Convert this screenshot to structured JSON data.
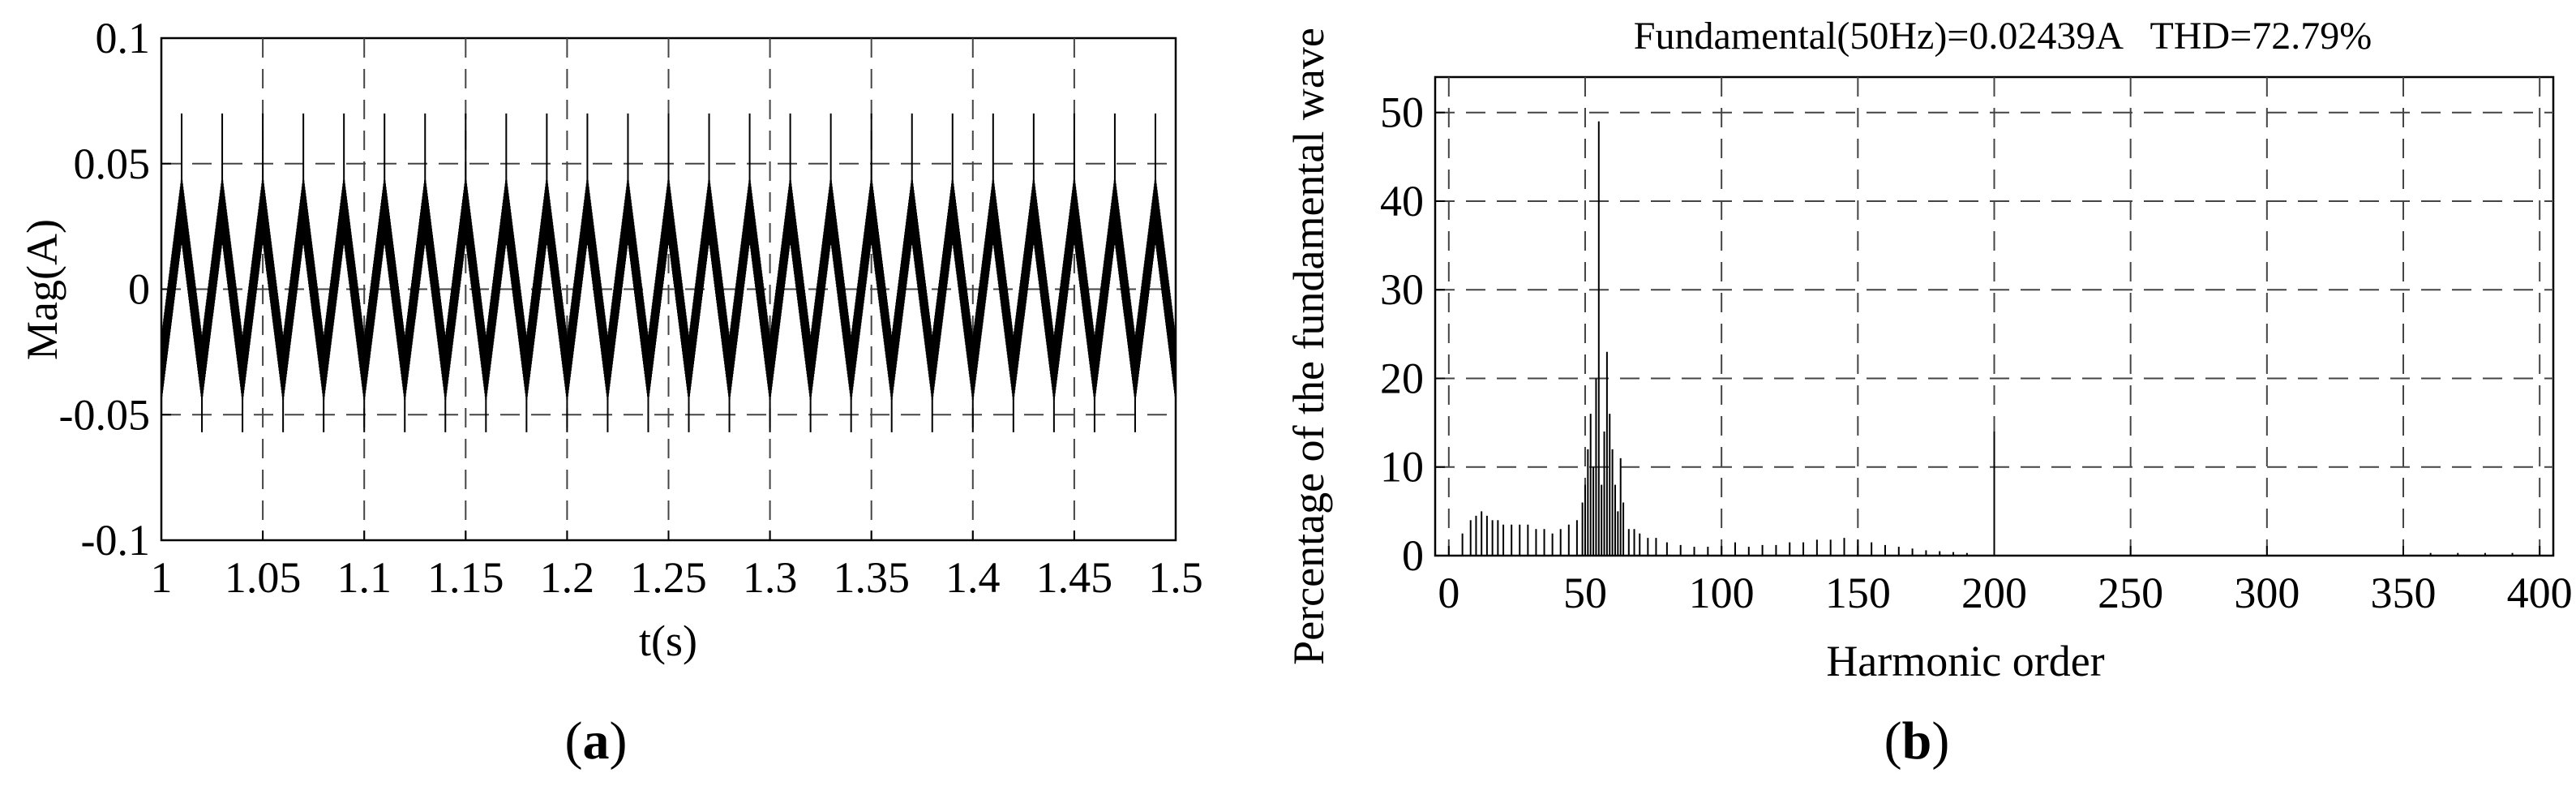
{
  "chart_data": [
    {
      "type": "line",
      "panel_label": {
        "open": "(",
        "letter": "a",
        "close": ")"
      },
      "title": "",
      "xlabel": "t(s)",
      "ylabel": "Mag(A)",
      "xlim": [
        1,
        1.5
      ],
      "ylim": [
        -0.1,
        0.1
      ],
      "xticks": [
        1,
        1.05,
        1.1,
        1.15,
        1.2,
        1.25,
        1.3,
        1.35,
        1.4,
        1.45,
        1.5
      ],
      "xtick_labels": [
        "1",
        "1.05",
        "1.1",
        "1.15",
        "1.2",
        "1.25",
        "1.3",
        "1.35",
        "1.4",
        "1.45",
        "1.5"
      ],
      "yticks": [
        -0.1,
        -0.05,
        0,
        0.05,
        0.1
      ],
      "ytick_labels": [
        "-0.1",
        "-0.05",
        "0",
        "0.05",
        "0.1"
      ],
      "grid": true,
      "series": [
        {
          "color": "#000000",
          "frequency_hz": 50,
          "envelope_max": 0.04,
          "envelope_min": -0.04,
          "spike_max": 0.07,
          "spike_min": -0.057,
          "x": [
            1.0,
            1.005,
            1.01,
            1.015,
            1.02,
            1.025,
            1.03,
            1.035,
            1.04,
            1.045,
            1.05
          ],
          "y": [
            -0.02,
            0.01,
            0.035,
            0.0,
            -0.035,
            0.01,
            0.035,
            0.0,
            -0.035,
            0.01,
            0.035
          ]
        }
      ]
    },
    {
      "type": "bar",
      "panel_label": {
        "open": "(",
        "letter": "b",
        "close": ")"
      },
      "title": "Fundamental(50Hz)=0.02439A   THD=72.79%",
      "xlabel": "Harmonic order",
      "ylabel": "Percentage of the fundamental wave",
      "xlim": [
        -5,
        405
      ],
      "ylim": [
        0,
        54
      ],
      "xticks": [
        0,
        50,
        100,
        150,
        200,
        250,
        300,
        350,
        400
      ],
      "xtick_labels": [
        "0",
        "50",
        "100",
        "150",
        "200",
        "250",
        "300",
        "350",
        "400"
      ],
      "yticks": [
        0,
        10,
        20,
        30,
        40,
        50
      ],
      "ytick_labels": [
        "0",
        "10",
        "20",
        "30",
        "40",
        "50"
      ],
      "grid": true,
      "bars": [
        {
          "x": 5,
          "value": 2.5
        },
        {
          "x": 8,
          "value": 4
        },
        {
          "x": 10,
          "value": 4.5
        },
        {
          "x": 12,
          "value": 5
        },
        {
          "x": 14,
          "value": 4.5
        },
        {
          "x": 16,
          "value": 4
        },
        {
          "x": 18,
          "value": 4
        },
        {
          "x": 20,
          "value": 3.5
        },
        {
          "x": 23,
          "value": 3.5
        },
        {
          "x": 26,
          "value": 3.5
        },
        {
          "x": 29,
          "value": 3.5
        },
        {
          "x": 32,
          "value": 3
        },
        {
          "x": 35,
          "value": 3
        },
        {
          "x": 38,
          "value": 2.5
        },
        {
          "x": 41,
          "value": 3
        },
        {
          "x": 44,
          "value": 3.5
        },
        {
          "x": 47,
          "value": 4
        },
        {
          "x": 49,
          "value": 6
        },
        {
          "x": 50,
          "value": 8
        },
        {
          "x": 51,
          "value": 12
        },
        {
          "x": 52,
          "value": 16
        },
        {
          "x": 53,
          "value": 10
        },
        {
          "x": 54,
          "value": 20
        },
        {
          "x": 55,
          "value": 49
        },
        {
          "x": 56,
          "value": 8
        },
        {
          "x": 57,
          "value": 14
        },
        {
          "x": 58,
          "value": 23
        },
        {
          "x": 59,
          "value": 16
        },
        {
          "x": 60,
          "value": 12
        },
        {
          "x": 61,
          "value": 8
        },
        {
          "x": 62,
          "value": 5
        },
        {
          "x": 63,
          "value": 11
        },
        {
          "x": 64,
          "value": 6
        },
        {
          "x": 66,
          "value": 3
        },
        {
          "x": 68,
          "value": 3
        },
        {
          "x": 70,
          "value": 2.5
        },
        {
          "x": 73,
          "value": 2
        },
        {
          "x": 76,
          "value": 2
        },
        {
          "x": 80,
          "value": 1.5
        },
        {
          "x": 85,
          "value": 1.2
        },
        {
          "x": 90,
          "value": 1
        },
        {
          "x": 95,
          "value": 1
        },
        {
          "x": 100,
          "value": 1
        },
        {
          "x": 105,
          "value": 1.5
        },
        {
          "x": 110,
          "value": 1
        },
        {
          "x": 115,
          "value": 1.2
        },
        {
          "x": 120,
          "value": 1.2
        },
        {
          "x": 125,
          "value": 1.5
        },
        {
          "x": 130,
          "value": 1.5
        },
        {
          "x": 135,
          "value": 1.8
        },
        {
          "x": 140,
          "value": 1.8
        },
        {
          "x": 145,
          "value": 2
        },
        {
          "x": 150,
          "value": 1.8
        },
        {
          "x": 155,
          "value": 1.5
        },
        {
          "x": 160,
          "value": 1.2
        },
        {
          "x": 165,
          "value": 1
        },
        {
          "x": 170,
          "value": 0.8
        },
        {
          "x": 175,
          "value": 0.6
        },
        {
          "x": 180,
          "value": 0.5
        },
        {
          "x": 185,
          "value": 0.4
        },
        {
          "x": 190,
          "value": 0.3
        },
        {
          "x": 200,
          "value": 14
        },
        {
          "x": 360,
          "value": 0.3
        },
        {
          "x": 370,
          "value": 0.3
        },
        {
          "x": 380,
          "value": 0.3
        },
        {
          "x": 390,
          "value": 0.3
        }
      ]
    }
  ]
}
